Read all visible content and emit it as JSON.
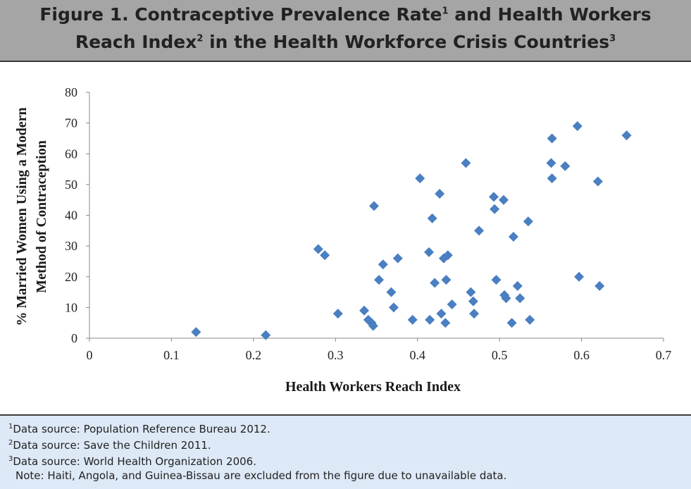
{
  "header": {
    "title_line1_a": "Figure 1. Contraceptive Prevalence Rate",
    "title_line1_sup1": "1",
    "title_line1_b": " and Health Workers",
    "title_line2_a": "Reach Index",
    "title_line2_sup2": "2",
    "title_line2_b": " in the Health Workforce Crisis Countries",
    "title_line2_sup3": "3"
  },
  "chart_data": {
    "type": "scatter",
    "title": "Figure 1. Contraceptive Prevalence Rate and Health Workers Reach Index in the Health Workforce Crisis Countries",
    "xlabel": "Health Workers Reach Index",
    "ylabel_line1": "% Married Women Using a Modern",
    "ylabel_line2": "Method of Contraception",
    "xlim": [
      0,
      0.7
    ],
    "ylim": [
      0,
      80
    ],
    "x_ticks": [
      "0",
      "0.1",
      "0.2",
      "0.3",
      "0.4",
      "0.5",
      "0.6",
      "0.7"
    ],
    "y_ticks": [
      "0",
      "10",
      "20",
      "30",
      "40",
      "50",
      "60",
      "70",
      "80"
    ],
    "grid": false,
    "legend": "none",
    "marker": "diamond",
    "marker_color": "#4a7fc1",
    "points": [
      {
        "x": 0.13,
        "y": 2
      },
      {
        "x": 0.215,
        "y": 1
      },
      {
        "x": 0.279,
        "y": 29
      },
      {
        "x": 0.287,
        "y": 27
      },
      {
        "x": 0.303,
        "y": 8
      },
      {
        "x": 0.335,
        "y": 9
      },
      {
        "x": 0.34,
        "y": 6
      },
      {
        "x": 0.344,
        "y": 5
      },
      {
        "x": 0.346,
        "y": 4
      },
      {
        "x": 0.347,
        "y": 43
      },
      {
        "x": 0.353,
        "y": 19
      },
      {
        "x": 0.358,
        "y": 24
      },
      {
        "x": 0.368,
        "y": 15
      },
      {
        "x": 0.371,
        "y": 10
      },
      {
        "x": 0.376,
        "y": 26
      },
      {
        "x": 0.394,
        "y": 6
      },
      {
        "x": 0.403,
        "y": 52
      },
      {
        "x": 0.414,
        "y": 28
      },
      {
        "x": 0.415,
        "y": 6
      },
      {
        "x": 0.418,
        "y": 39
      },
      {
        "x": 0.421,
        "y": 18
      },
      {
        "x": 0.427,
        "y": 47
      },
      {
        "x": 0.429,
        "y": 8
      },
      {
        "x": 0.432,
        "y": 26
      },
      {
        "x": 0.434,
        "y": 5
      },
      {
        "x": 0.435,
        "y": 19
      },
      {
        "x": 0.437,
        "y": 27
      },
      {
        "x": 0.442,
        "y": 11
      },
      {
        "x": 0.459,
        "y": 57
      },
      {
        "x": 0.465,
        "y": 15
      },
      {
        "x": 0.468,
        "y": 12
      },
      {
        "x": 0.469,
        "y": 8
      },
      {
        "x": 0.475,
        "y": 35
      },
      {
        "x": 0.493,
        "y": 46
      },
      {
        "x": 0.494,
        "y": 42
      },
      {
        "x": 0.496,
        "y": 19
      },
      {
        "x": 0.505,
        "y": 45
      },
      {
        "x": 0.506,
        "y": 14
      },
      {
        "x": 0.508,
        "y": 13
      },
      {
        "x": 0.515,
        "y": 5
      },
      {
        "x": 0.517,
        "y": 33
      },
      {
        "x": 0.522,
        "y": 17
      },
      {
        "x": 0.525,
        "y": 13
      },
      {
        "x": 0.535,
        "y": 38
      },
      {
        "x": 0.537,
        "y": 6
      },
      {
        "x": 0.563,
        "y": 57
      },
      {
        "x": 0.564,
        "y": 65
      },
      {
        "x": 0.564,
        "y": 52
      },
      {
        "x": 0.58,
        "y": 56
      },
      {
        "x": 0.595,
        "y": 69
      },
      {
        "x": 0.597,
        "y": 20
      },
      {
        "x": 0.62,
        "y": 51
      },
      {
        "x": 0.622,
        "y": 17
      },
      {
        "x": 0.655,
        "y": 66
      }
    ]
  },
  "footer": {
    "note1_sup": "1",
    "note1": "Data source: Population Reference Bureau 2012.",
    "note2_sup": "2",
    "note2": "Data source: Save the Children 2011.",
    "note3_sup": "3",
    "note3": "Data source: World Health Organization 2006.",
    "note4": "Note: Haiti, Angola, and Guinea-Bissau are excluded from the figure due to unavailable data."
  },
  "colors": {
    "header_bg": "#a5a5a5",
    "footer_bg": "#dde9f6",
    "marker": "#4a7fc1",
    "axis": "#888888"
  }
}
